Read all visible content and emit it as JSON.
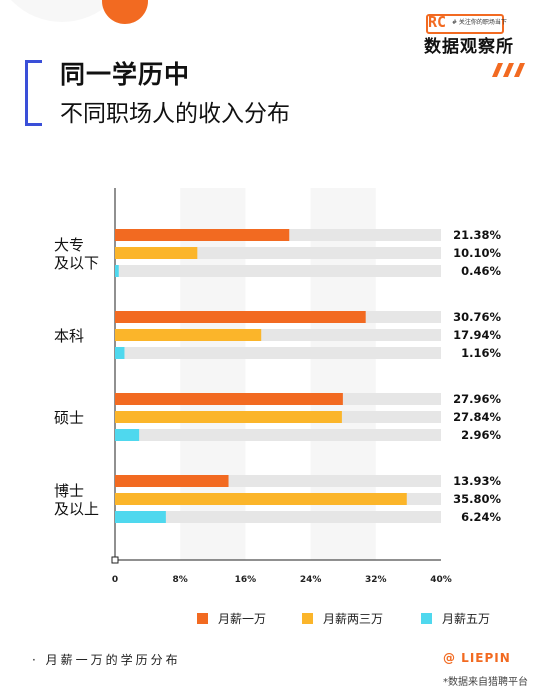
{
  "header": {
    "title_line1": "同一学历中",
    "title_line2": "不同职场人的收入分布",
    "brand_tag": "# 关注你的职场当下",
    "brand_name": "数据观察所",
    "brand_logo_text": "RC",
    "accent_color": "#f26a21",
    "bracket_color": "#3a4fd8"
  },
  "chart_data": {
    "type": "bar",
    "orientation": "horizontal",
    "title": "",
    "xlabel": "",
    "ylabel": "",
    "xlim": [
      0,
      40
    ],
    "x_ticks": [
      0,
      8,
      16,
      24,
      32,
      40
    ],
    "x_tick_labels": [
      "0",
      "8%",
      "16%",
      "24%",
      "32%",
      "40%"
    ],
    "categories": [
      {
        "label": [
          "大专",
          "及以下"
        ]
      },
      {
        "label": [
          "本科"
        ]
      },
      {
        "label": [
          "硕士"
        ]
      },
      {
        "label": [
          "博士",
          "及以上"
        ]
      }
    ],
    "series": [
      {
        "name": "月薪一万",
        "color": "#f26a21",
        "values": [
          21.38,
          30.76,
          27.96,
          13.93
        ],
        "labels": [
          "21.38%",
          "30.76%",
          "27.96%",
          "13.93%"
        ]
      },
      {
        "name": "月薪两三万",
        "color": "#fbb52a",
        "values": [
          10.1,
          17.94,
          27.84,
          35.8
        ],
        "labels": [
          "10.10%",
          "17.94%",
          "27.84%",
          "35.80%"
        ]
      },
      {
        "name": "月薪五万",
        "color": "#4fd8ee",
        "values": [
          0.46,
          1.16,
          2.96,
          6.24
        ],
        "labels": [
          "0.46%",
          "1.16%",
          "2.96%",
          "6.24%"
        ]
      }
    ],
    "track_color": "#e6e6e6",
    "legend_position": "bottom-right"
  },
  "footer": {
    "left_text": "· 月薪一万的学历分布",
    "brand": "@ LIEPIN",
    "note": "*数据来自猎聘平台"
  }
}
